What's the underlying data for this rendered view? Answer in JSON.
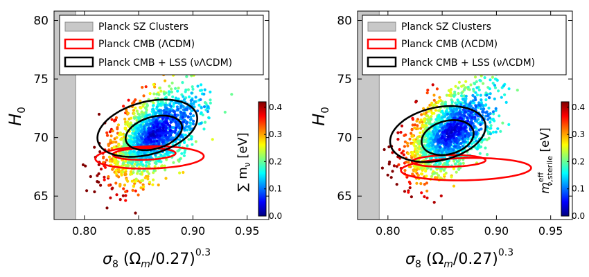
{
  "chart_data": [
    {
      "type": "scatter",
      "xlabel": "σ8 (Ωm/0.27)^0.3",
      "ylabel": "H0",
      "xlim": [
        0.772,
        0.97
      ],
      "ylim": [
        63.0,
        80.8
      ],
      "xticks": [
        "0.80",
        "0.85",
        "0.90",
        "0.95"
      ],
      "yticks": [
        "65",
        "70",
        "75",
        "80"
      ],
      "legend_position": "top",
      "legend": [
        "Planck SZ Clusters",
        "Planck CMB (ΛCDM)",
        "Planck CMB + LSS (νΛCDM)"
      ],
      "band": {
        "name": "Planck SZ Clusters",
        "x_range": [
          0.772,
          0.792
        ],
        "color": "#c8c8c8"
      },
      "colorbar": {
        "label": "∑ mν [eV]",
        "range": [
          0.0,
          0.42
        ],
        "ticks": [
          "0.0",
          "0.1",
          "0.2",
          "0.3",
          "0.4"
        ]
      },
      "cloud": {
        "center": [
          0.862,
          70.2
        ],
        "spread": [
          0.021,
          1.9
        ],
        "count": 1600,
        "seed": 11
      },
      "contours": [
        {
          "name": "Planck CMB (ΛCDM)",
          "color": "#ff0000",
          "ellipses": [
            {
              "cx": 0.86,
              "cy": 68.3,
              "a": 0.05,
              "b": 0.95,
              "angle": 0.046
            },
            {
              "cx": 0.855,
              "cy": 68.6,
              "a": 0.029,
              "b": 0.5,
              "angle": 0.046
            }
          ]
        },
        {
          "name": "Planck CMB + LSS (νΛCDM)",
          "color": "#000000",
          "ellipses": [
            {
              "cx": 0.858,
              "cy": 70.8,
              "a": 0.046,
              "b": 2.3,
              "angle": 0.4
            },
            {
              "cx": 0.864,
              "cy": 70.4,
              "a": 0.026,
              "b": 1.4,
              "angle": 0.4
            }
          ]
        }
      ]
    },
    {
      "type": "scatter",
      "xlabel": "σ8 (Ωm/0.27)^0.3",
      "ylabel": "H0",
      "xlim": [
        0.772,
        0.97
      ],
      "ylim": [
        63.0,
        80.8
      ],
      "xticks": [
        "0.80",
        "0.85",
        "0.90",
        "0.95"
      ],
      "yticks": [
        "65",
        "70",
        "75",
        "80"
      ],
      "legend_position": "top",
      "legend": [
        "Planck SZ Clusters",
        "Planck CMB (ΛCDM)",
        "Planck CMB + LSS (νΛCDM)"
      ],
      "band": {
        "name": "Planck SZ Clusters",
        "x_range": [
          0.772,
          0.792
        ],
        "color": "#c8c8c8"
      },
      "colorbar": {
        "label": "m eff ν,sterile [eV]",
        "range": [
          0.0,
          0.42
        ],
        "ticks": [
          "0.0",
          "0.1",
          "0.2",
          "0.3",
          "0.4"
        ]
      },
      "cloud": {
        "center": [
          0.855,
          70.3
        ],
        "spread": [
          0.02,
          1.9
        ],
        "count": 1600,
        "seed": 29
      },
      "contours": [
        {
          "name": "Planck CMB (ΛCDM)",
          "color": "#ff0000",
          "ellipses": [
            {
              "cx": 0.872,
              "cy": 67.3,
              "a": 0.06,
              "b": 0.95,
              "angle": 0.04
            },
            {
              "cx": 0.856,
              "cy": 68.0,
              "a": 0.034,
              "b": 0.5,
              "angle": 0.04
            }
          ]
        },
        {
          "name": "Planck CMB + LSS (νΛCDM)",
          "color": "#000000",
          "ellipses": [
            {
              "cx": 0.846,
              "cy": 70.3,
              "a": 0.044,
              "b": 2.3,
              "angle": 0.32
            },
            {
              "cx": 0.855,
              "cy": 70.0,
              "a": 0.024,
              "b": 1.45,
              "angle": 0.32
            }
          ]
        }
      ]
    }
  ],
  "panels": [
    {
      "legend_labels": [
        "Planck SZ Clusters",
        "Planck CMB (ΛCDM)",
        "Planck CMB + LSS (νΛCDM)"
      ],
      "ylabel_main": "H",
      "ylabel_sub": "0",
      "xlabel_main": "σ",
      "xlabel_sub": "8",
      "xlabel_rest": " (Ω",
      "xlabel_sub2": "m",
      "xlabel_rest2": "/0.27)",
      "xlabel_sup": "0.3",
      "cbar_main": "∑ m",
      "cbar_sub": "ν",
      "cbar_unit": " [eV]",
      "cbar_sup": ""
    },
    {
      "legend_labels": [
        "Planck SZ Clusters",
        "Planck CMB (ΛCDM)",
        "Planck CMB + LSS (νΛCDM)"
      ],
      "ylabel_main": "H",
      "ylabel_sub": "0",
      "xlabel_main": "σ",
      "xlabel_sub": "8",
      "xlabel_rest": " (Ω",
      "xlabel_sub2": "m",
      "xlabel_rest2": "/0.27)",
      "xlabel_sup": "0.3",
      "cbar_main": "m",
      "cbar_sub": "ν,sterile",
      "cbar_unit": "  [eV]",
      "cbar_sup": "eff"
    }
  ]
}
